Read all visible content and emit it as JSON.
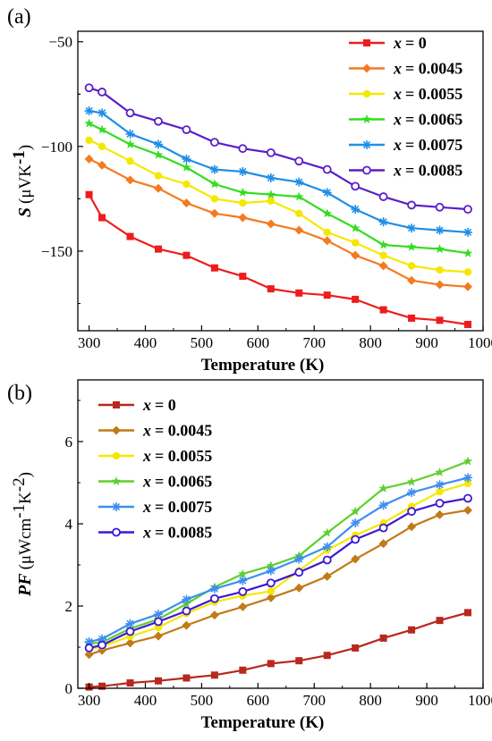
{
  "chart_data": [
    {
      "type": "line",
      "panel_label": "(a)",
      "xlabel": "Temperature (K)",
      "ylabel": {
        "symbol": "S",
        "unit_prefix": "(μVK",
        "unit_power": "-1",
        "unit_suffix": ")"
      },
      "xlim": [
        280,
        1000
      ],
      "ylim": [
        -188,
        -45
      ],
      "x_ticks": [
        300,
        400,
        500,
        600,
        700,
        800,
        900,
        1000
      ],
      "y_ticks": [
        -50,
        -100,
        -150
      ],
      "grid": false,
      "legend": "top-right",
      "x": [
        300,
        323,
        373,
        423,
        473,
        523,
        573,
        623,
        673,
        723,
        773,
        823,
        873,
        923,
        973
      ],
      "series": [
        {
          "name": "x = 0",
          "name_var": "x",
          "name_val": "= 0",
          "color": "#ee1c1c",
          "marker": "square",
          "values": [
            -123,
            -134,
            -143,
            -149,
            -152,
            -158,
            -162,
            -168,
            -170,
            -171,
            -173,
            -178,
            -182,
            -183,
            -185
          ]
        },
        {
          "name": "x = 0.0045",
          "name_var": "x",
          "name_val": "= 0.0045",
          "color": "#f47a20",
          "marker": "diamond",
          "values": [
            -106,
            -109,
            -116,
            -120,
            -127,
            -132,
            -134,
            -137,
            -140,
            -145,
            -152,
            -157,
            -164,
            -166,
            -167
          ]
        },
        {
          "name": "x = 0.0055",
          "name_var": "x",
          "name_val": "= 0.0055",
          "color": "#f5e800",
          "marker": "circle",
          "values": [
            -97,
            -100,
            -107,
            -114,
            -118,
            -125,
            -127,
            -126,
            -132,
            -141,
            -146,
            -152,
            -157,
            -159,
            -160
          ]
        },
        {
          "name": "x = 0.0065",
          "name_var": "x",
          "name_val": "= 0.0065",
          "color": "#33dd1f",
          "marker": "star",
          "values": [
            -89,
            -92,
            -99,
            -104,
            -110,
            -118,
            -122,
            -123,
            -124,
            -132,
            -139,
            -147,
            -148,
            -149,
            -151
          ]
        },
        {
          "name": "x = 0.0075",
          "name_var": "x",
          "name_val": "= 0.0075",
          "color": "#1e8fe8",
          "marker": "asterisk",
          "values": [
            -83,
            -84,
            -94,
            -99,
            -106,
            -111,
            -112,
            -115,
            -117,
            -122,
            -130,
            -136,
            -139,
            -140,
            -141
          ]
        },
        {
          "name": "x = 0.0085",
          "name_var": "x",
          "name_val": "= 0.0085",
          "color": "#5a1ec8",
          "marker": "open-circle",
          "values": [
            -72,
            -74,
            -84,
            -88,
            -92,
            -98,
            -101,
            -103,
            -107,
            -111,
            -119,
            -124,
            -128,
            -129,
            -130
          ]
        }
      ]
    },
    {
      "type": "line",
      "panel_label": "(b)",
      "xlabel": "Temperature (K)",
      "ylabel": {
        "symbol": "PF",
        "unit_prefix": "(μWcm",
        "unit_power": "-1",
        "unit_mid": "K",
        "unit_power2": "-2",
        "unit_suffix": ")"
      },
      "xlim": [
        280,
        1000
      ],
      "ylim": [
        0,
        7.5
      ],
      "x_ticks": [
        300,
        400,
        500,
        600,
        700,
        800,
        900,
        1000
      ],
      "y_ticks": [
        0,
        2,
        4,
        6
      ],
      "grid": false,
      "legend": "top-left",
      "x": [
        300,
        323,
        373,
        423,
        473,
        523,
        573,
        623,
        673,
        723,
        773,
        823,
        873,
        923,
        973
      ],
      "series": [
        {
          "name": "x = 0",
          "name_var": "x",
          "name_val": "= 0",
          "color": "#b7281e",
          "marker": "square",
          "values": [
            0.03,
            0.05,
            0.13,
            0.18,
            0.25,
            0.32,
            0.44,
            0.6,
            0.67,
            0.8,
            0.98,
            1.22,
            1.42,
            1.65,
            1.84
          ]
        },
        {
          "name": "x = 0.0045",
          "name_var": "x",
          "name_val": "= 0.0045",
          "color": "#c17a17",
          "marker": "diamond",
          "values": [
            0.82,
            0.92,
            1.1,
            1.27,
            1.53,
            1.78,
            1.98,
            2.2,
            2.44,
            2.72,
            3.14,
            3.52,
            3.93,
            4.22,
            4.33
          ]
        },
        {
          "name": "x = 0.0055",
          "name_var": "x",
          "name_val": "= 0.0055",
          "color": "#f5e800",
          "marker": "circle",
          "values": [
            0.95,
            1.02,
            1.26,
            1.48,
            1.82,
            2.1,
            2.25,
            2.36,
            2.86,
            3.36,
            3.72,
            4.02,
            4.42,
            4.78,
            4.98
          ]
        },
        {
          "name": "x = 0.0065",
          "name_var": "x",
          "name_val": "= 0.0065",
          "color": "#5fcf2e",
          "marker": "star",
          "values": [
            1.08,
            1.12,
            1.45,
            1.68,
            2.05,
            2.46,
            2.78,
            2.98,
            3.22,
            3.78,
            4.3,
            4.86,
            5.02,
            5.25,
            5.52
          ]
        },
        {
          "name": "x = 0.0075",
          "name_var": "x",
          "name_val": "= 0.0075",
          "color": "#3d8ef0",
          "marker": "asterisk",
          "values": [
            1.13,
            1.2,
            1.57,
            1.8,
            2.16,
            2.42,
            2.62,
            2.86,
            3.14,
            3.44,
            4.02,
            4.45,
            4.76,
            4.95,
            5.12
          ]
        },
        {
          "name": "x = 0.0085",
          "name_var": "x",
          "name_val": "= 0.0085",
          "color": "#3d17d6",
          "marker": "open-circle",
          "values": [
            0.98,
            1.05,
            1.38,
            1.62,
            1.88,
            2.18,
            2.35,
            2.56,
            2.82,
            3.12,
            3.62,
            3.9,
            4.3,
            4.5,
            4.62
          ]
        }
      ]
    }
  ]
}
